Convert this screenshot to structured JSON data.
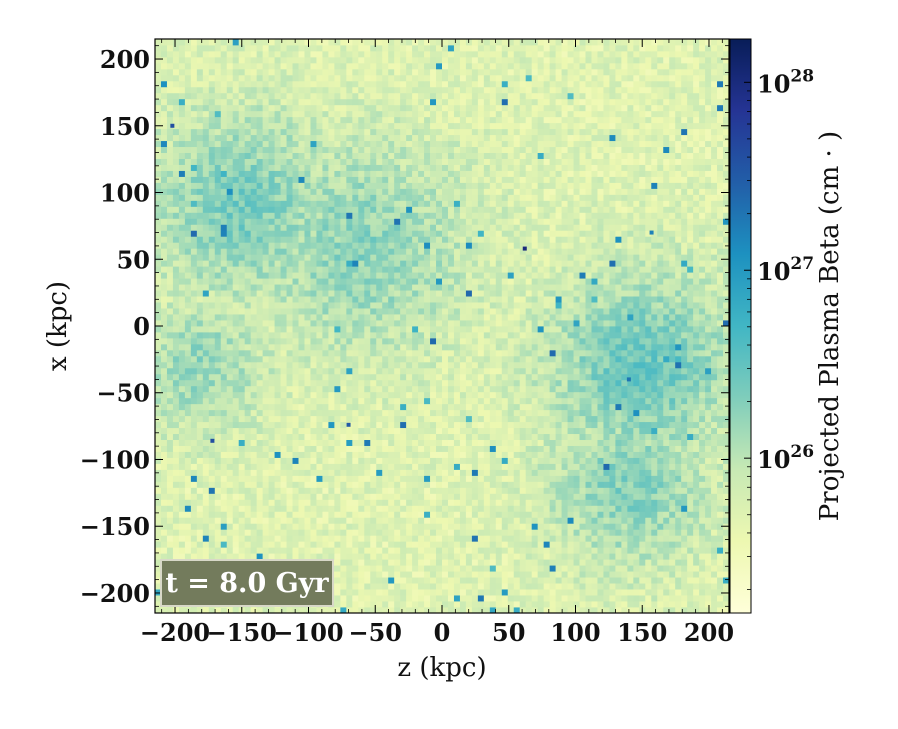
{
  "chart_data": {
    "type": "heatmap",
    "title": "",
    "xlabel": "z  (kpc)",
    "ylabel": "x  (kpc)",
    "xlim": [
      -215,
      215
    ],
    "ylim": [
      -215,
      215
    ],
    "x_ticks": [
      -200,
      -150,
      -100,
      -50,
      0,
      50,
      100,
      150,
      200
    ],
    "y_ticks": [
      -200,
      -150,
      -100,
      -50,
      0,
      50,
      100,
      150,
      200
    ],
    "x_tick_labels": [
      "−200",
      "−150",
      "−100",
      "−50",
      "0",
      "50",
      "100",
      "150",
      "200"
    ],
    "y_tick_labels": [
      "−200",
      "−150",
      "−100",
      "−50",
      "0",
      "50",
      "100",
      "150",
      "200"
    ],
    "colorbar": {
      "label": "Projected Plasma Beta  (cm · )",
      "scale": "log",
      "range": [
        1.5e+25,
        1.7e+28
      ],
      "ticks": [
        1e+26,
        1e+27,
        1e+28
      ],
      "tick_labels": [
        {
          "base": "10",
          "exp": "26"
        },
        {
          "base": "10",
          "exp": "27"
        },
        {
          "base": "10",
          "exp": "28"
        }
      ],
      "colormap": [
        "#ffffd9",
        "#edf8b1",
        "#c7e9b4",
        "#7fcdbb",
        "#41b6c4",
        "#1d91c0",
        "#225ea8",
        "#253494",
        "#081d58"
      ]
    },
    "annotation": {
      "text": "t = 8.0 Gyr",
      "position": "bottom-left",
      "box_color": "#737b5c"
    },
    "diffuse_regions": [
      {
        "x": -150,
        "y": 90,
        "radius": 70,
        "log_value": 26.35
      },
      {
        "x": -60,
        "y": 60,
        "radius": 80,
        "log_value": 26.25
      },
      {
        "x": 150,
        "y": -30,
        "radius": 70,
        "log_value": 26.45
      },
      {
        "x": 140,
        "y": -120,
        "radius": 60,
        "log_value": 26.3
      },
      {
        "x": -180,
        "y": -30,
        "radius": 50,
        "log_value": 26.2
      }
    ],
    "background_log_value": 25.7,
    "notable_pixels": [
      {
        "x": 62,
        "y": 58,
        "log_value": 28.0
      },
      {
        "x": -202,
        "y": 150,
        "log_value": 27.6
      },
      {
        "x": -172,
        "y": -86,
        "log_value": 27.6
      },
      {
        "x": -70,
        "y": -74,
        "log_value": 27.5
      },
      {
        "x": 140,
        "y": -40,
        "log_value": 27.3
      },
      {
        "x": 157,
        "y": 70,
        "log_value": 27.2
      }
    ]
  }
}
